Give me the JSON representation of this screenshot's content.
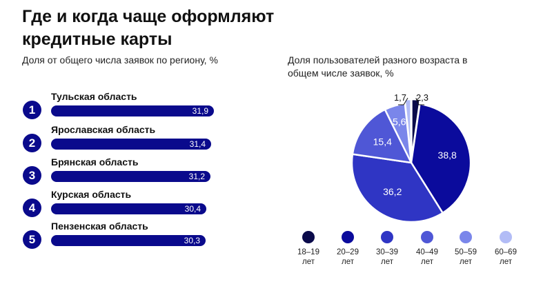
{
  "title": "Где и когда чаще оформляют кредитные карты",
  "left_subtitle": "Доля от общего числа заявок по региону, %",
  "right_subtitle": "Доля пользователей разного возраста в общем числе заявок, %",
  "colors": {
    "bar": "#0a0a8c",
    "age_18_19": "#0a0a4a",
    "age_20_29": "#0b0b9c",
    "age_30_39": "#2f35c4",
    "age_40_49": "#4f57d6",
    "age_50_59": "#7a86ea",
    "age_60_69": "#b2bcf6"
  },
  "chart_data": [
    {
      "type": "bar",
      "orientation": "horizontal",
      "subtitle": "Доля от общего числа заявок по региону, %",
      "ranks": [
        "1",
        "2",
        "3",
        "4",
        "5"
      ],
      "categories": [
        "Тульская область",
        "Ярославская область",
        "Брянская область",
        "Курская область",
        "Пензенская область"
      ],
      "values": [
        31.9,
        31.4,
        31.2,
        30.4,
        30.3
      ],
      "value_labels": [
        "31,9",
        "31,4",
        "31,2",
        "30,4",
        "30,3"
      ]
    },
    {
      "type": "pie",
      "subtitle": "Доля пользователей разного возраста в общем числе заявок, %",
      "categories": [
        "18–19 лет",
        "20–29 лет",
        "30–39 лет",
        "40–49 лет",
        "50–59 лет",
        "60–69 лет"
      ],
      "legend_top": [
        "18–19",
        "20–29",
        "30–39",
        "40–49",
        "50–59",
        "60–69"
      ],
      "legend_bottom": "лет",
      "values": [
        2.3,
        38.8,
        36.2,
        15.4,
        5.6,
        1.7
      ],
      "value_labels": [
        "2,3",
        "38,8",
        "36,2",
        "15,4",
        "5,6",
        "1,7"
      ],
      "legend_placement": "bottom"
    }
  ]
}
